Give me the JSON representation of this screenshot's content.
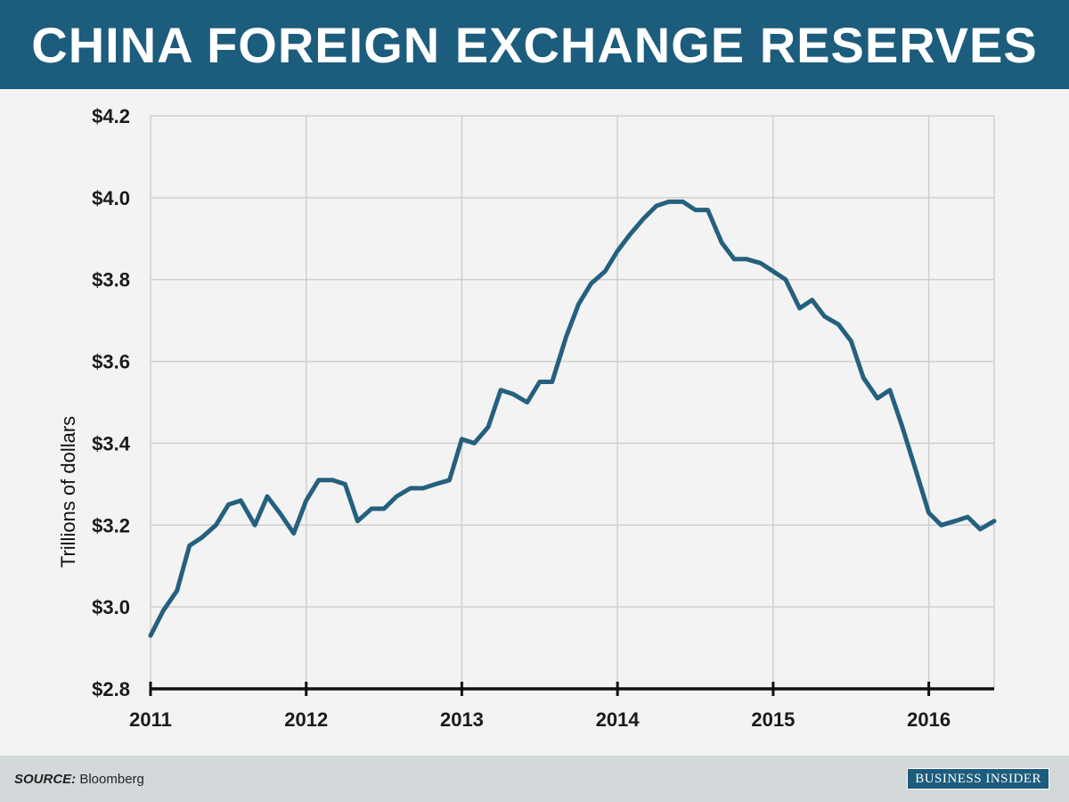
{
  "header": {
    "title": "CHINA FOREIGN EXCHANGE RESERVES"
  },
  "footer": {
    "source_label": "SOURCE:",
    "source_value": "Bloomberg",
    "brand": "BUSINESS INSIDER"
  },
  "colors": {
    "header_bg": "#1c5c7c",
    "line": "#25607e",
    "grid": "#cfcfcf",
    "footer_bg": "#d3d8da"
  },
  "chart_data": {
    "type": "line",
    "title": "CHINA FOREIGN EXCHANGE RESERVES",
    "ylabel": "Trillions of dollars",
    "xlabel": "",
    "ylim": [
      2.8,
      4.2
    ],
    "xlim": [
      2011.0,
      2016.42
    ],
    "grid": true,
    "y_ticks": [
      "$2.8",
      "$3.0",
      "$3.2",
      "$3.4",
      "$3.6",
      "$3.8",
      "$4.0",
      "$4.2"
    ],
    "y_tick_values": [
      2.8,
      3.0,
      3.2,
      3.4,
      3.6,
      3.8,
      4.0,
      4.2
    ],
    "x_ticks": [
      "2011",
      "2012",
      "2013",
      "2014",
      "2015",
      "2016"
    ],
    "x_tick_values": [
      2011,
      2012,
      2013,
      2014,
      2015,
      2016
    ],
    "series": [
      {
        "x": [
          2011.0,
          2011.08,
          2011.17,
          2011.25,
          2011.33,
          2011.42,
          2011.5,
          2011.58,
          2011.67,
          2011.75,
          2011.83,
          2011.92,
          2012.0,
          2012.08,
          2012.17,
          2012.25,
          2012.33,
          2012.42,
          2012.5,
          2012.58,
          2012.67,
          2012.75,
          2012.83,
          2012.92,
          2013.0,
          2013.08,
          2013.17,
          2013.25,
          2013.33,
          2013.42,
          2013.5,
          2013.58,
          2013.67,
          2013.75,
          2013.83,
          2013.92,
          2014.0,
          2014.08,
          2014.17,
          2014.25,
          2014.33,
          2014.42,
          2014.5,
          2014.58,
          2014.67,
          2014.75,
          2014.83,
          2014.92,
          2015.0,
          2015.08,
          2015.17,
          2015.25,
          2015.33,
          2015.42,
          2015.5,
          2015.58,
          2015.67,
          2015.75,
          2015.83,
          2015.92,
          2016.0,
          2016.08,
          2016.17,
          2016.25,
          2016.33,
          2016.42
        ],
        "values": [
          2.93,
          2.99,
          3.04,
          3.15,
          3.17,
          3.2,
          3.25,
          3.26,
          3.2,
          3.27,
          3.23,
          3.18,
          3.26,
          3.31,
          3.31,
          3.3,
          3.21,
          3.24,
          3.24,
          3.27,
          3.29,
          3.29,
          3.3,
          3.31,
          3.41,
          3.4,
          3.44,
          3.53,
          3.52,
          3.5,
          3.55,
          3.55,
          3.66,
          3.74,
          3.79,
          3.82,
          3.87,
          3.91,
          3.95,
          3.98,
          3.99,
          3.99,
          3.97,
          3.97,
          3.89,
          3.85,
          3.85,
          3.84,
          3.82,
          3.8,
          3.73,
          3.75,
          3.71,
          3.69,
          3.65,
          3.56,
          3.51,
          3.53,
          3.44,
          3.33,
          3.23,
          3.2,
          3.21,
          3.22,
          3.19,
          3.21
        ]
      }
    ]
  }
}
